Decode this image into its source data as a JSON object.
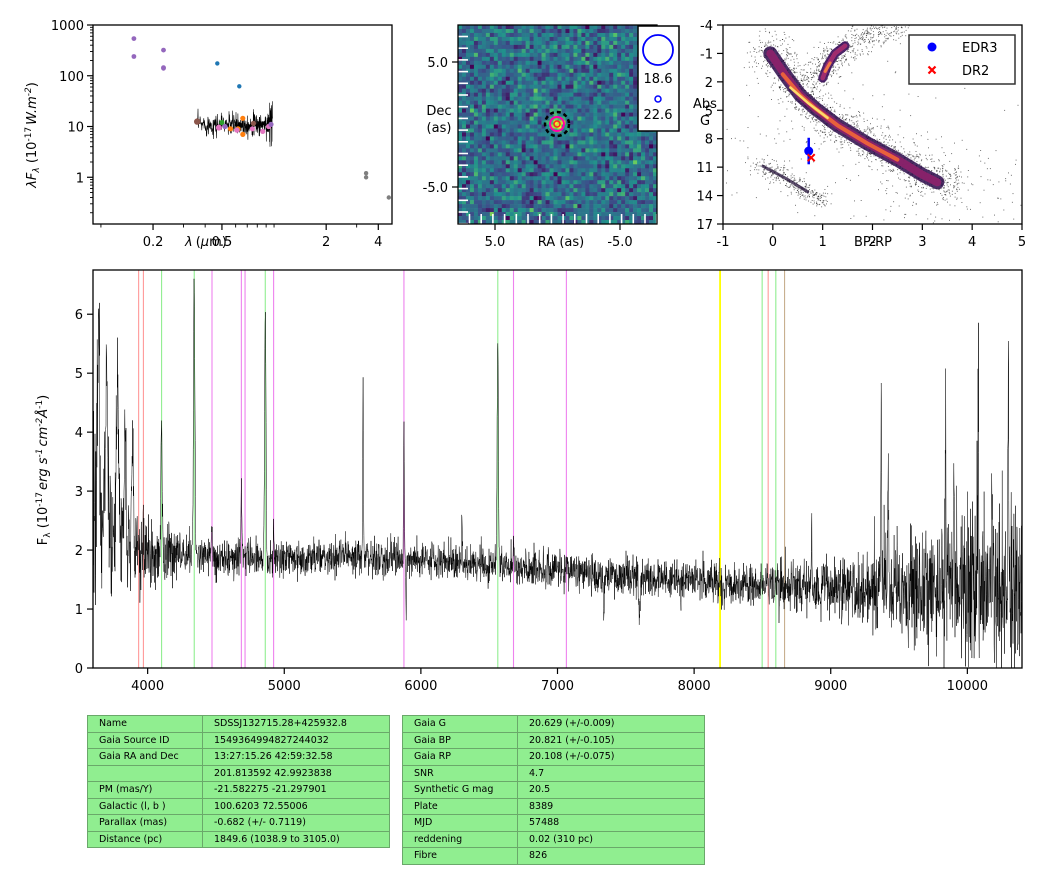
{
  "sed_panel": {
    "ylabel": "λF_λ (10^-17 W.m^-2)",
    "ylabel_parts": {
      "pre": "λF",
      "sub": "λ",
      "mid": " (10",
      "sup": "-17",
      "unit": "W.m",
      "sup2": "-2",
      "post": ")"
    },
    "xlabel": "λ (μm)",
    "y_ticks": [
      "1000",
      "100",
      "10",
      "1"
    ],
    "x_ticks": [
      "0.2",
      "0.5",
      "2",
      "4"
    ],
    "xlim": [
      0.09,
      4.8
    ],
    "ylim": [
      0.12,
      1000
    ],
    "points": [
      {
        "x": 0.155,
        "y": 540,
        "color": "#9467bd",
        "size": 2.4
      },
      {
        "x": 0.155,
        "y": 240,
        "color": "#9467bd",
        "size": 2.4
      },
      {
        "x": 0.23,
        "y": 320,
        "color": "#9467bd",
        "size": 2.4
      },
      {
        "x": 0.23,
        "y": 145,
        "color": "#9467bd",
        "size": 2.4
      },
      {
        "x": 0.23,
        "y": 140,
        "color": "#9467bd",
        "size": 2.4
      },
      {
        "x": 0.47,
        "y": 175,
        "color": "#1f77b4",
        "size": 2.2
      },
      {
        "x": 0.63,
        "y": 62,
        "color": "#1f77b4",
        "size": 2.2
      },
      {
        "x": 0.36,
        "y": 12.5,
        "color": "#8c564b",
        "size": 3.2
      },
      {
        "x": 0.48,
        "y": 9.5,
        "color": "#e377c2",
        "size": 3
      },
      {
        "x": 0.5,
        "y": 12,
        "color": "#2ca02c",
        "size": 2.6
      },
      {
        "x": 0.52,
        "y": 10,
        "color": "#9467bd",
        "size": 2.6
      },
      {
        "x": 0.56,
        "y": 9,
        "color": "#ff7f0e",
        "size": 2.6
      },
      {
        "x": 0.62,
        "y": 9,
        "color": "#ff7f0e",
        "size": 2.6
      },
      {
        "x": 0.66,
        "y": 7,
        "color": "#ff7f0e",
        "size": 2.6
      },
      {
        "x": 0.66,
        "y": 14.5,
        "color": "#ff7f0e",
        "size": 2.6
      },
      {
        "x": 0.61,
        "y": 8.5,
        "color": "#e377c2",
        "size": 2.6
      },
      {
        "x": 0.75,
        "y": 9,
        "color": "#e377c2",
        "size": 2.6
      },
      {
        "x": 0.76,
        "y": 11.5,
        "color": "#8c564b",
        "size": 2.6
      },
      {
        "x": 0.86,
        "y": 8,
        "color": "#e377c2",
        "size": 2.6
      },
      {
        "x": 0.93,
        "y": 10,
        "color": "#e377c2",
        "size": 2.6
      },
      {
        "x": 0.96,
        "y": 11,
        "color": "#9467bd",
        "size": 2.6
      },
      {
        "x": 3.4,
        "y": 1.2,
        "color": "#7f7f7f",
        "size": 2.2
      },
      {
        "x": 3.4,
        "y": 1.0,
        "color": "#7f7f7f",
        "size": 2.2
      },
      {
        "x": 4.6,
        "y": 0.4,
        "color": "#7f7f7f",
        "size": 2.2
      }
    ]
  },
  "image_panel": {
    "xlabel": "RA (as)",
    "ylabel": [
      "Dec",
      "(as)"
    ],
    "x_ticks": [
      "5.0",
      "-5.0"
    ],
    "y_ticks": [
      "5.0",
      "-5.0"
    ],
    "legend": [
      {
        "label": "18.6",
        "radius": 15
      },
      {
        "label": "22.6",
        "radius": 3
      }
    ]
  },
  "hr_panel": {
    "xlabel": "BP-RP",
    "ylabel": [
      "Abs",
      "G"
    ],
    "x_ticks": [
      "-1",
      "0",
      "1",
      "2",
      "3",
      "4",
      "5"
    ],
    "y_ticks": [
      "-4",
      "-1",
      "2",
      "5",
      "8",
      "11",
      "14",
      "17"
    ],
    "xlim": [
      -1,
      5
    ],
    "ylim": [
      17,
      -4
    ],
    "legend": [
      {
        "label": "EDR3",
        "color": "#0000ff",
        "marker": "circle"
      },
      {
        "label": "DR2",
        "color": "#ff0000",
        "marker": "x"
      }
    ],
    "edr3": {
      "x": 0.72,
      "y": 9.3,
      "yerr": 1.4
    },
    "dr2": {
      "x": 0.77,
      "y": 10.0
    }
  },
  "chart_data": {
    "type": "line",
    "xlim": [
      3600,
      10400
    ],
    "ylim": [
      0,
      6.75
    ],
    "ylabel": "F_λ (10^-17 erg s^-1 cm^-2 Å^-1)",
    "ylabel_parts": {
      "pre": "F",
      "sub": "λ",
      "mid": " (10",
      "sup": "-17",
      "unit1": "erg s",
      "sup2": "-1",
      "unit2": "cm",
      "sup3": "-2",
      "unit3": "Å",
      "sup4": "-1",
      "post": ")"
    },
    "x_ticks": [
      "4000",
      "5000",
      "6000",
      "7000",
      "8000",
      "9000",
      "10000"
    ],
    "y_ticks": [
      "0",
      "1",
      "2",
      "3",
      "4",
      "5",
      "6"
    ],
    "lines": [
      {
        "x": 3934,
        "color": "#ff9999"
      },
      {
        "x": 3969,
        "color": "#ff9999"
      },
      {
        "x": 4102,
        "color": "#90ee90"
      },
      {
        "x": 4341,
        "color": "#90ee90"
      },
      {
        "x": 4471,
        "color": "#ee82ee"
      },
      {
        "x": 4686,
        "color": "#ee82ee"
      },
      {
        "x": 4713,
        "color": "#ee82ee"
      },
      {
        "x": 4861,
        "color": "#90ee90"
      },
      {
        "x": 4922,
        "color": "#ee82ee"
      },
      {
        "x": 5876,
        "color": "#ee82ee"
      },
      {
        "x": 6563,
        "color": "#90ee90"
      },
      {
        "x": 6678,
        "color": "#ee82ee"
      },
      {
        "x": 7065,
        "color": "#ee82ee"
      },
      {
        "x": 8190,
        "color": "#ffff00"
      },
      {
        "x": 8498,
        "color": "#90ee90"
      },
      {
        "x": 8542,
        "color": "#ff9999"
      },
      {
        "x": 8598,
        "color": "#90ee90"
      },
      {
        "x": 8662,
        "color": "#c8b090"
      }
    ],
    "continuum": [
      [
        3600,
        2.6
      ],
      [
        3800,
        2.2
      ],
      [
        4000,
        1.95
      ],
      [
        4500,
        1.9
      ],
      [
        5000,
        1.85
      ],
      [
        5500,
        1.9
      ],
      [
        6000,
        1.85
      ],
      [
        6500,
        1.75
      ],
      [
        7000,
        1.65
      ],
      [
        7500,
        1.55
      ],
      [
        8000,
        1.5
      ],
      [
        8500,
        1.4
      ],
      [
        9000,
        1.35
      ],
      [
        9500,
        1.3
      ],
      [
        10000,
        1.3
      ],
      [
        10400,
        1.3
      ]
    ],
    "noise": [
      [
        3600,
        1.6
      ],
      [
        3900,
        0.7
      ],
      [
        4300,
        0.3
      ],
      [
        5500,
        0.25
      ],
      [
        7000,
        0.3
      ],
      [
        8000,
        0.3
      ],
      [
        9000,
        0.4
      ],
      [
        9500,
        0.7
      ],
      [
        10000,
        1.2
      ],
      [
        10400,
        1.5
      ]
    ],
    "features": [
      [
        3640,
        3.5,
        8
      ],
      [
        3700,
        2.2,
        10
      ],
      [
        3780,
        2.5,
        8
      ],
      [
        3835,
        2.0,
        6
      ],
      [
        3889,
        1.7,
        7
      ],
      [
        4102,
        2.0,
        5
      ],
      [
        4341,
        4.6,
        5
      ],
      [
        4471,
        0.5,
        3
      ],
      [
        4686,
        1.2,
        4
      ],
      [
        4861,
        4.2,
        5
      ],
      [
        4922,
        0.5,
        3
      ],
      [
        5577,
        3.1,
        2.5
      ],
      [
        5876,
        2.0,
        3
      ],
      [
        5893,
        -1.0,
        3
      ],
      [
        6300,
        0.9,
        2.5
      ],
      [
        6563,
        3.7,
        5
      ],
      [
        6678,
        0.6,
        3
      ],
      [
        7065,
        0.4,
        3
      ],
      [
        7340,
        -0.8,
        3
      ],
      [
        7600,
        -0.7,
        6
      ],
      [
        8860,
        0.9,
        3
      ],
      [
        9370,
        3.5,
        3
      ],
      [
        9420,
        2.2,
        3
      ],
      [
        9840,
        3.0,
        3
      ],
      [
        9900,
        2.8,
        3
      ],
      [
        10080,
        3.2,
        3
      ],
      [
        10180,
        2.6,
        3
      ],
      [
        10300,
        4.1,
        3
      ]
    ]
  },
  "table_left": [
    [
      "Name",
      "SDSSJ132715.28+425932.8"
    ],
    [
      "Gaia Source ID",
      "1549364994827244032"
    ],
    [
      "Gaia RA and Dec",
      "13:27:15.26    42:59:32.58"
    ],
    [
      "",
      "201.813592    42.9923838"
    ],
    [
      "PM (mas/Y)",
      "-21.582275    -21.297901"
    ],
    [
      "Galactic (l, b )",
      "100.6203    72.55006"
    ],
    [
      "Parallax (mas)",
      "-0.682 (+/- 0.7119)"
    ],
    [
      "Distance (pc)",
      "1849.6 (1038.9 to 3105.0)"
    ]
  ],
  "table_right": [
    [
      "Gaia G",
      "20.629 (+/-0.009)"
    ],
    [
      "Gaia BP",
      "20.821 (+/-0.105)"
    ],
    [
      "Gaia RP",
      "20.108 (+/-0.075)"
    ],
    [
      "SNR",
      "4.7"
    ],
    [
      "Synthetic G mag",
      "20.5"
    ],
    [
      "Plate",
      "8389"
    ],
    [
      "MJD",
      "57488"
    ],
    [
      "reddening",
      "0.02 (310 pc)"
    ],
    [
      "Fibre",
      "826"
    ]
  ]
}
